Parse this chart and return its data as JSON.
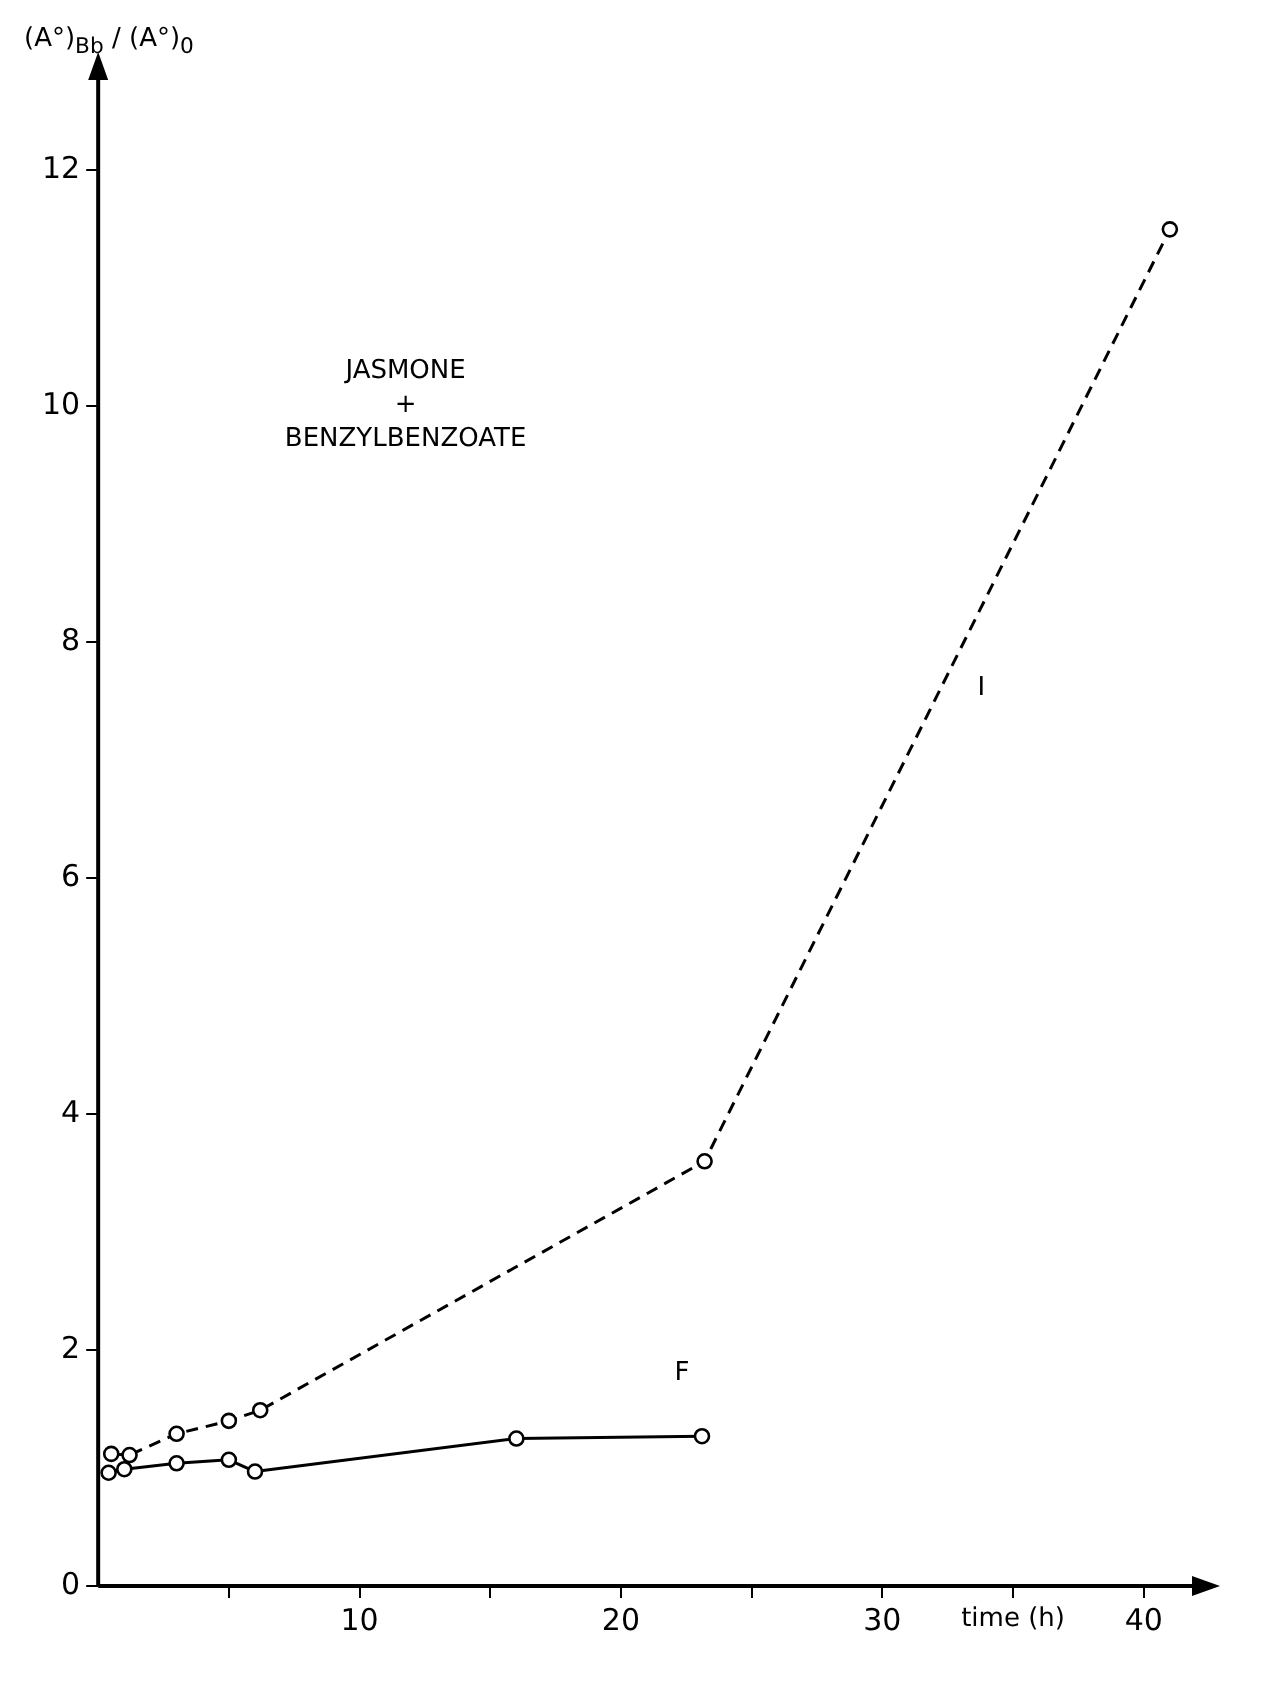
{
  "chart_data": {
    "type": "line",
    "xlabel": "time (h)",
    "ylabel": "(A°)$_{Bb}$ / (A°)$_{0}$",
    "xlim": [
      0,
      42
    ],
    "ylim": [
      0,
      12.8
    ],
    "xticks": [
      {
        "value": 5,
        "label": null
      },
      10,
      {
        "value": 15,
        "label": null
      },
      20,
      {
        "value": 25,
        "label": null
      },
      30,
      {
        "value": 35,
        "label": null
      },
      40
    ],
    "yticks": [
      0,
      2,
      4,
      6,
      8,
      10,
      12
    ],
    "grid": false,
    "legend": false,
    "marker": "circle",
    "annotations": [
      "JASMONE\n+\nBENZYLBENZOATE"
    ],
    "series": [
      {
        "name": "I",
        "color": "#000000",
        "line_style": "dashed",
        "x": [
          0.5,
          1.2,
          3,
          5,
          6.2,
          23.2,
          41
        ],
        "values": [
          1.12,
          1.11,
          1.29,
          1.4,
          1.49,
          3.6,
          11.5
        ]
      },
      {
        "name": "F",
        "color": "#000000",
        "line_style": "solid",
        "x": [
          0.4,
          1,
          3,
          5,
          6,
          16,
          23.1
        ],
        "values": [
          0.96,
          0.99,
          1.04,
          1.07,
          0.97,
          1.25,
          1.27
        ]
      }
    ]
  }
}
